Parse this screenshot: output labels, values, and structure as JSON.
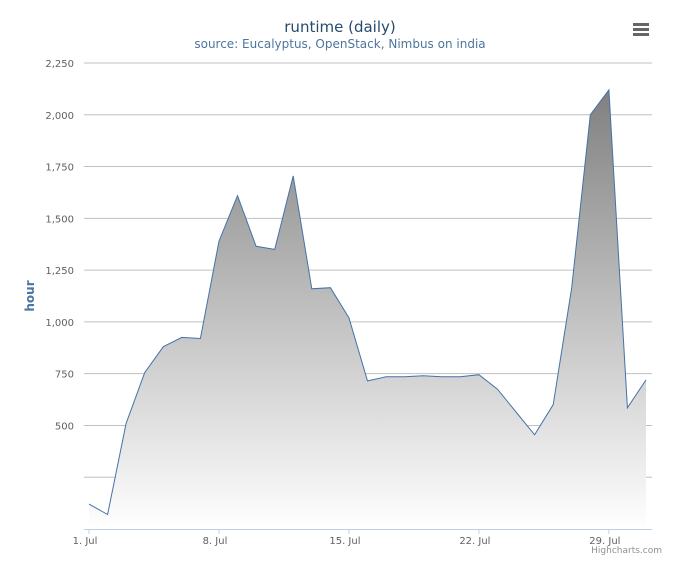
{
  "chart_data": {
    "type": "area",
    "title": "runtime (daily)",
    "subtitle": "source: Eucalyptus, OpenStack, Nimbus on india",
    "xlabel": "",
    "ylabel": "hour",
    "x": [
      "1. Jul",
      "2. Jul",
      "3. Jul",
      "4. Jul",
      "5. Jul",
      "6. Jul",
      "7. Jul",
      "8. Jul",
      "9. Jul",
      "10. Jul",
      "11. Jul",
      "12. Jul",
      "13. Jul",
      "14. Jul",
      "15. Jul",
      "16. Jul",
      "17. Jul",
      "18. Jul",
      "19. Jul",
      "20. Jul",
      "21. Jul",
      "22. Jul",
      "23. Jul",
      "24. Jul",
      "25. Jul",
      "26. Jul",
      "27. Jul",
      "28. Jul",
      "29. Jul",
      "30. Jul",
      "31. Jul"
    ],
    "x_tick_labels": [
      "1. Jul",
      "8. Jul",
      "15. Jul",
      "22. Jul",
      "29. Jul"
    ],
    "x_tick_indices": [
      0,
      7,
      14,
      21,
      28
    ],
    "series": [
      {
        "values": [
          120,
          70,
          510,
          755,
          880,
          925,
          920,
          1390,
          1610,
          1365,
          1350,
          1705,
          1160,
          1165,
          1020,
          715,
          735,
          735,
          740,
          735,
          735,
          745,
          675,
          565,
          455,
          600,
          1165,
          2000,
          2120,
          585,
          720
        ]
      }
    ],
    "ylim": [
      0,
      2250
    ],
    "y_ticks": [
      500,
      750,
      1000,
      1250,
      1500,
      1750,
      2000,
      2250
    ],
    "y_tick_labels": [
      "500",
      "750",
      "1,000",
      "1,250",
      "1,500",
      "1,750",
      "2,000",
      "2,250"
    ],
    "y_grid_lines": [
      250,
      500,
      750,
      1000,
      1250,
      1500,
      1750,
      2000,
      2250
    ],
    "grid": true,
    "legend": "none",
    "colors": {
      "line": "#4572a7",
      "fill_top": "#808080",
      "fill_bottom": "#ffffff"
    }
  },
  "credits": "Highcharts.com",
  "menu_icon": "hamburger-menu-icon"
}
